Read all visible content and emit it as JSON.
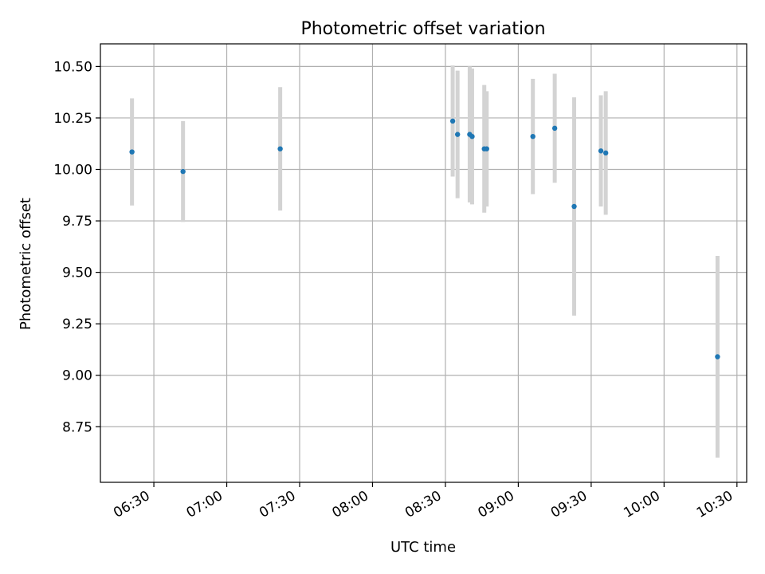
{
  "chart_data": {
    "type": "scatter",
    "title": "Photometric offset variation",
    "xlabel": "UTC time",
    "ylabel": "Photometric offset",
    "xlim": [
      "06:08",
      "10:34"
    ],
    "ylim": [
      8.48,
      10.61
    ],
    "x_ticks": [
      "06:30",
      "07:00",
      "07:30",
      "08:00",
      "08:30",
      "09:00",
      "09:30",
      "10:00",
      "10:30"
    ],
    "y_ticks": [
      "8.75",
      "9.00",
      "9.25",
      "9.50",
      "9.75",
      "10.00",
      "10.25",
      "10.50"
    ],
    "grid": true,
    "series": [
      {
        "marker_color": "#1f77b4",
        "errorbar_color": "#d3d3d3",
        "points": [
          {
            "x": "06:21",
            "y": 10.085,
            "err": 0.26
          },
          {
            "x": "06:42",
            "y": 9.99,
            "err": 0.245
          },
          {
            "x": "07:22",
            "y": 10.1,
            "err": 0.3
          },
          {
            "x": "08:33",
            "y": 10.235,
            "err": 0.27
          },
          {
            "x": "08:35",
            "y": 10.17,
            "err": 0.31
          },
          {
            "x": "08:40",
            "y": 10.17,
            "err": 0.33
          },
          {
            "x": "08:41",
            "y": 10.16,
            "err": 0.33
          },
          {
            "x": "08:46",
            "y": 10.1,
            "err": 0.31
          },
          {
            "x": "08:47",
            "y": 10.1,
            "err": 0.28
          },
          {
            "x": "09:06",
            "y": 10.16,
            "err": 0.28
          },
          {
            "x": "09:15",
            "y": 10.2,
            "err": 0.265
          },
          {
            "x": "09:23",
            "y": 9.82,
            "err": 0.53
          },
          {
            "x": "09:34",
            "y": 10.09,
            "err": 0.27
          },
          {
            "x": "09:36",
            "y": 10.08,
            "err": 0.3
          },
          {
            "x": "10:22",
            "y": 9.09,
            "err": 0.49
          }
        ]
      }
    ]
  }
}
